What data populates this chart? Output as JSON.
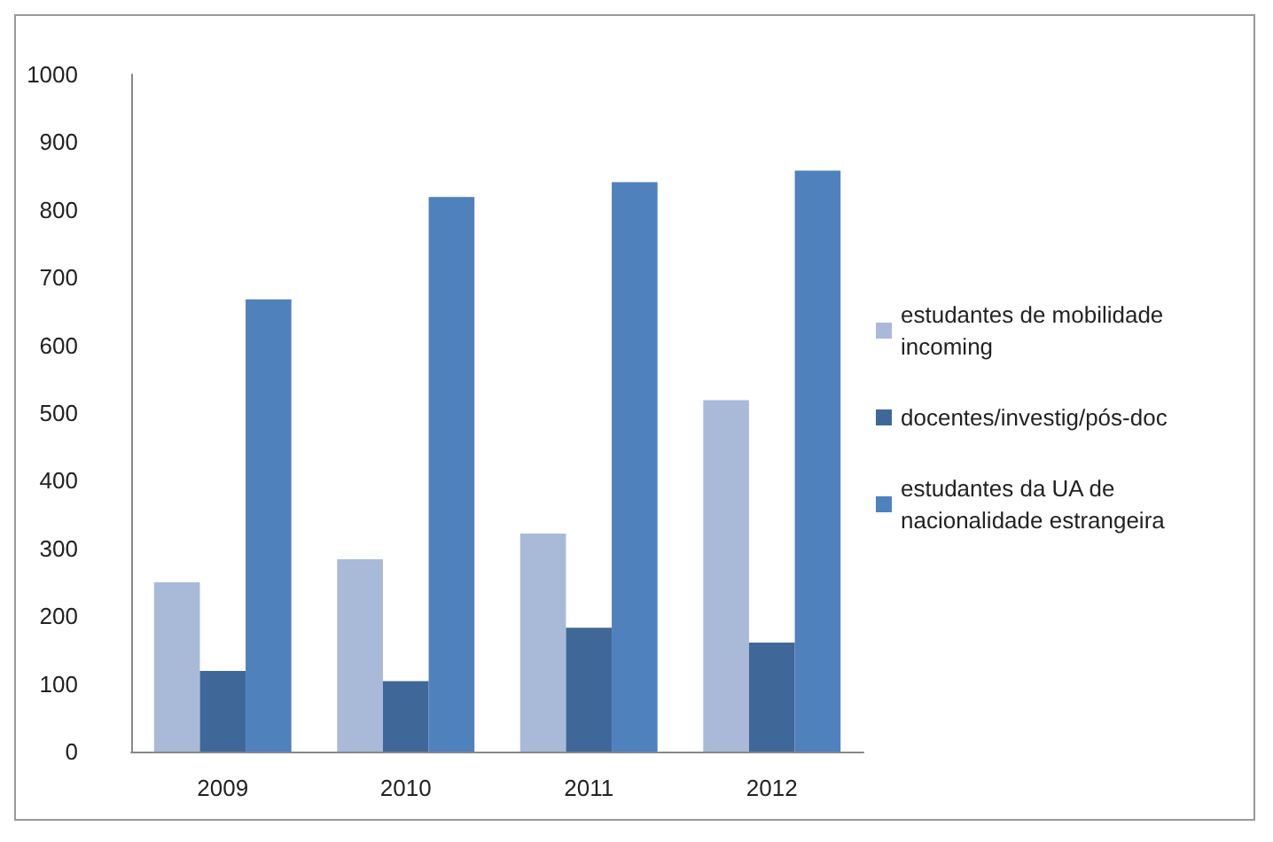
{
  "chart_data": {
    "type": "bar",
    "categories": [
      "2009",
      "2010",
      "2011",
      "2012"
    ],
    "series": [
      {
        "name": "estudantes de mobilidade incoming",
        "color": "#a9b9d8",
        "values": [
          250,
          284,
          322,
          519
        ]
      },
      {
        "name": "docentes/investig/pós-doc",
        "color": "#3f6899",
        "values": [
          119,
          104,
          183,
          161
        ]
      },
      {
        "name": "estudantes da UA de nacionalidade estrangeira",
        "color": "#4f81bd",
        "values": [
          668,
          819,
          841,
          858
        ]
      }
    ],
    "ylim": [
      0,
      1000
    ],
    "yticks": [
      0,
      100,
      200,
      300,
      400,
      500,
      600,
      700,
      800,
      900,
      1000
    ],
    "grid": false,
    "legend": "right"
  }
}
